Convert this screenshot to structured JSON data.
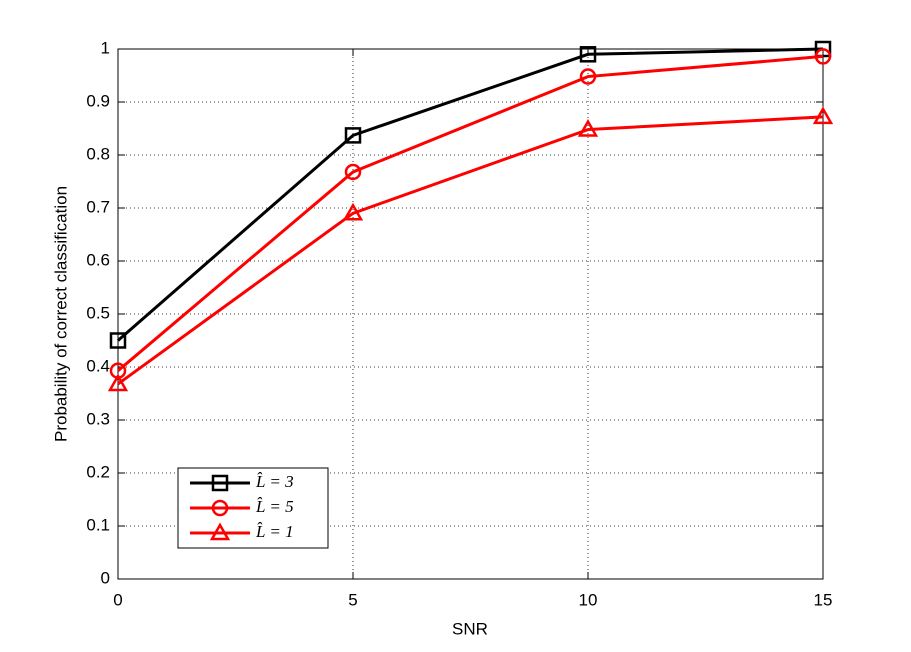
{
  "chart_data": {
    "type": "line",
    "x_label": "SNR",
    "y_label": "Probability of correct classification",
    "x": [
      0,
      5,
      10,
      15
    ],
    "series": [
      {
        "name": "L̂ = 3",
        "color": "#000000",
        "marker": "square",
        "values": [
          0.45,
          0.837,
          0.99,
          1.0
        ]
      },
      {
        "name": "L̂ = 5",
        "color": "#ff0000",
        "marker": "circle",
        "values": [
          0.393,
          0.768,
          0.948,
          0.986
        ]
      },
      {
        "name": "L̂ = 1",
        "color": "#ff0000",
        "marker": "triangle",
        "values": [
          0.368,
          0.69,
          0.848,
          0.872
        ]
      }
    ],
    "xlim": [
      0,
      15
    ],
    "xticks": [
      0,
      5,
      10,
      15
    ],
    "ylim": [
      0,
      1
    ],
    "yticks": [
      0,
      0.1,
      0.2,
      0.3,
      0.4,
      0.5,
      0.6,
      0.7,
      0.8,
      0.9,
      1
    ],
    "grid": true,
    "legend": "lower left"
  }
}
